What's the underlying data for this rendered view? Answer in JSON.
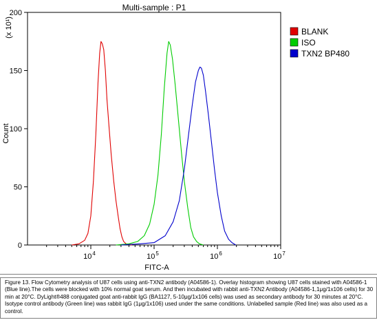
{
  "chart_data": {
    "type": "line",
    "title": "Multi-sample : P1",
    "xlabel": "FITC-A",
    "ylabel": "Count",
    "y_multiplier": "(x 10¹)",
    "x_scale": "log",
    "xlim": [
      1000,
      10000000
    ],
    "ylim": [
      0,
      200
    ],
    "x_ticks": [
      {
        "value": 10000,
        "base": "10",
        "exp": "4"
      },
      {
        "value": 100000,
        "base": "10",
        "exp": "5"
      },
      {
        "value": 1000000,
        "base": "10",
        "exp": "6"
      },
      {
        "value": 10000000,
        "base": "10",
        "exp": "7"
      }
    ],
    "y_ticks": [
      0,
      50,
      100,
      150,
      200
    ],
    "legend_position": "top-right",
    "series": [
      {
        "name": "BLANK",
        "color": "#e00000",
        "x": [
          5000,
          6500,
          8000,
          9000,
          10000,
          11000,
          12000,
          13000,
          13800,
          14500,
          15200,
          16000,
          17000,
          18000,
          19500,
          21000,
          23000,
          25000,
          27000,
          29000,
          31000,
          33000,
          36000,
          40000,
          45000
        ],
        "y": [
          0,
          1,
          4,
          10,
          25,
          55,
          95,
          140,
          165,
          175,
          173,
          168,
          150,
          125,
          100,
          78,
          55,
          38,
          25,
          14,
          7,
          3,
          1,
          0.5,
          0
        ]
      },
      {
        "name": "ISO",
        "color": "#00cc00",
        "x": [
          25000,
          40000,
          55000,
          70000,
          85000,
          100000,
          115000,
          130000,
          145000,
          160000,
          170000,
          180000,
          195000,
          215000,
          240000,
          270000,
          300000,
          340000,
          380000,
          420000,
          470000,
          520000,
          600000
        ],
        "y": [
          0,
          1,
          3,
          8,
          18,
          35,
          60,
          95,
          135,
          165,
          175,
          172,
          160,
          138,
          110,
          80,
          55,
          32,
          15,
          7,
          3,
          1,
          0
        ]
      },
      {
        "name": "TXN2 BP480",
        "color": "#0000cc",
        "x": [
          30000,
          60000,
          100000,
          150000,
          200000,
          250000,
          300000,
          350000,
          400000,
          450000,
          500000,
          530000,
          560000,
          600000,
          650000,
          720000,
          800000,
          900000,
          1000000,
          1150000,
          1300000,
          1500000,
          1700000,
          1950000
        ],
        "y": [
          0,
          1,
          2,
          8,
          20,
          38,
          65,
          95,
          120,
          140,
          150,
          153,
          152,
          146,
          132,
          112,
          90,
          65,
          45,
          25,
          12,
          5,
          2,
          0
        ]
      }
    ]
  },
  "caption": {
    "text": "Figure 13. Flow Cytometry analysis of U87 cells using anti-TXN2 antibody (A04586-1).  Overlay histogram showing U87 cells stained with A04586-1 (Blue line).The cells were blocked with 10% normal goat serum. And then incubated with rabbit anti-TXN2 Antibody (A04586-1,1μg/1x106 cells) for 30 min at 20°C. DyLight®488 conjugated goat anti-rabbit IgG (BA1127, 5-10μg/1x106 cells) was used as secondary antibody for 30 minutes at 20°C. Isotype control antibody (Green line) was rabbit IgG (1μg/1x106) used under the same conditions. Unlabelled sample (Red line) was also used as a control."
  }
}
